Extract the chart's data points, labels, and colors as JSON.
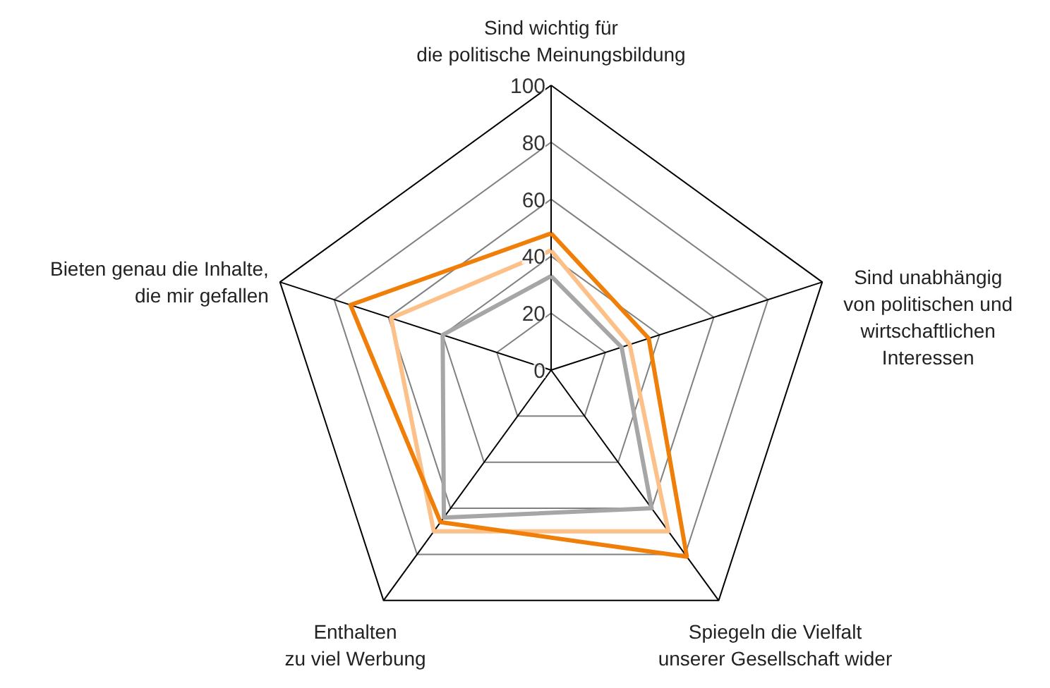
{
  "chart_data": {
    "type": "radar",
    "categories": [
      "Sind wichtig für\ndie politische Meinungsbildung",
      "Sind unabhängig\nvon politischen und\nwirtschaftlichen\nInteressen",
      "Spiegeln die Vielfalt\nunserer Gesellschaft wider",
      "Enthalten\nzu viel Werbung",
      "Bieten genau die Inhalte,\ndie mir gefallen"
    ],
    "series": [
      {
        "color": "#a6a6a6",
        "values": [
          33,
          26,
          60,
          64,
          40
        ]
      },
      {
        "color": "#fcc088",
        "values": [
          42,
          29,
          70,
          70,
          59
        ]
      },
      {
        "color": "#f07f09",
        "values": [
          48,
          36,
          81,
          66,
          74
        ]
      }
    ],
    "ylim": [
      0,
      100
    ],
    "yticks": [
      0,
      20,
      40,
      60,
      80,
      100
    ],
    "grid": true,
    "marker": "none",
    "line_style": "solid"
  }
}
